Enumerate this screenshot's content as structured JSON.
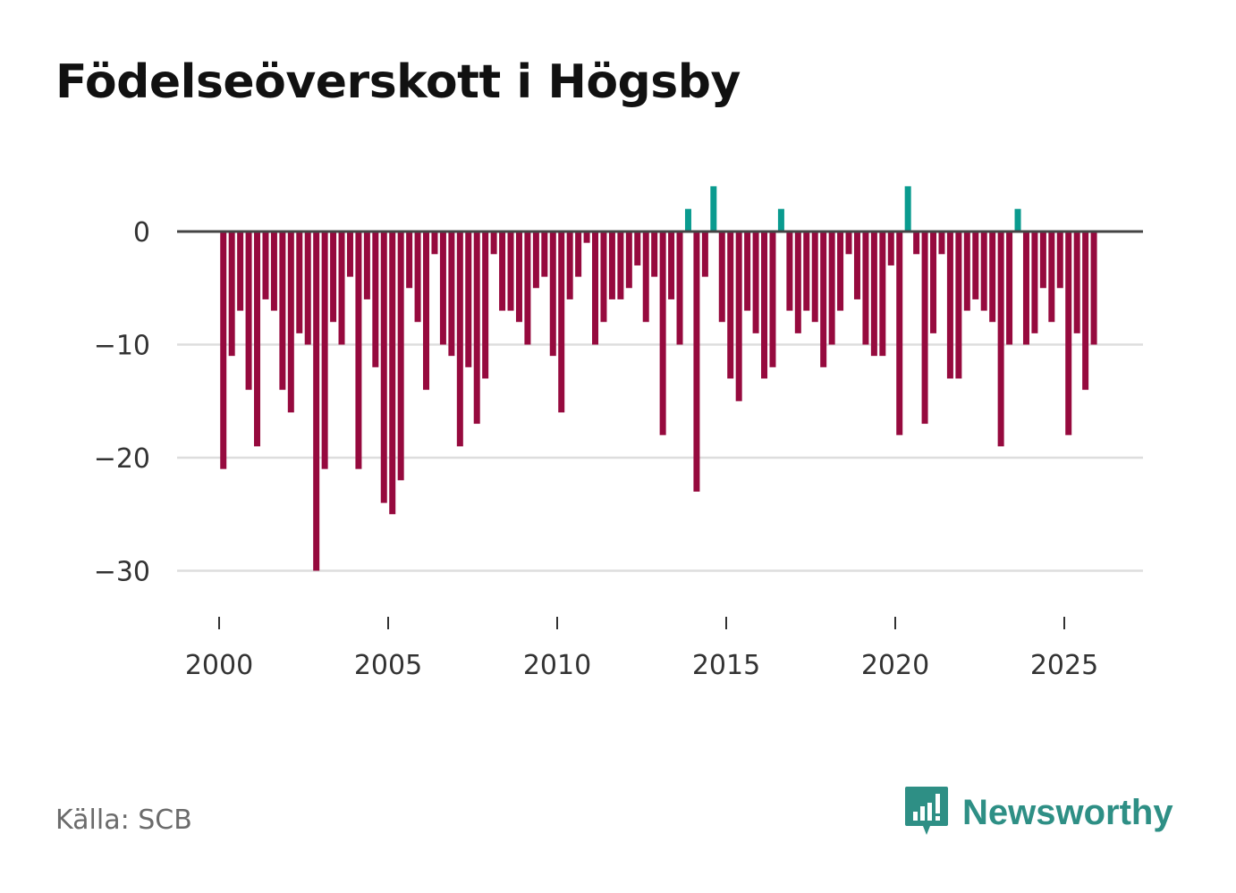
{
  "title": "Födelseöverskott i Högsby",
  "source": "Källa: SCB",
  "brand": {
    "name": "Newsworthy",
    "logo_icon": "chat-bar-chart-icon"
  },
  "colors": {
    "negative": "#960a3e",
    "positive": "#0a9b8f",
    "zero_line": "#444444",
    "grid": "#dddddd",
    "brand": "#2e8f85"
  },
  "chart_data": {
    "type": "bar",
    "title": "Födelseöverskott i Högsby",
    "xlabel": "",
    "ylabel": "",
    "x_ticks": [
      "2000",
      "2005",
      "2010",
      "2015",
      "2020",
      "2025"
    ],
    "y_ticks": [
      "0",
      "−10",
      "−20",
      "−30"
    ],
    "ylim": [
      -35,
      4
    ],
    "xlim": [
      1999.0,
      2027.4
    ],
    "period": "quarterly",
    "x_start": 2000.125,
    "x_step": 0.25,
    "values": [
      -21,
      -11,
      -7,
      -14,
      -19,
      -6,
      -7,
      -14,
      -16,
      -9,
      -10,
      -30,
      -21,
      -8,
      -10,
      -4,
      -21,
      -6,
      -12,
      -24,
      -25,
      -22,
      -5,
      -8,
      -14,
      -2,
      -10,
      -11,
      -19,
      -12,
      -17,
      -13,
      -2,
      -7,
      -7,
      -8,
      -10,
      -5,
      -4,
      -11,
      -16,
      -6,
      -4,
      -1,
      -10,
      -8,
      -6,
      -6,
      -5,
      -3,
      -8,
      -4,
      -18,
      -6,
      -10,
      2,
      -23,
      -4,
      4,
      -8,
      -13,
      -15,
      -7,
      -9,
      -13,
      -12,
      2,
      -7,
      -9,
      -7,
      -8,
      -12,
      -10,
      -7,
      -2,
      -6,
      -10,
      -11,
      -11,
      -3,
      -18,
      4,
      -2,
      -17,
      -9,
      -2,
      -13,
      -13,
      -7,
      -6,
      -7,
      -8,
      -19,
      -10,
      2,
      -10,
      -9,
      -5,
      -8,
      -5,
      -18,
      -9,
      -14,
      -10
    ]
  }
}
